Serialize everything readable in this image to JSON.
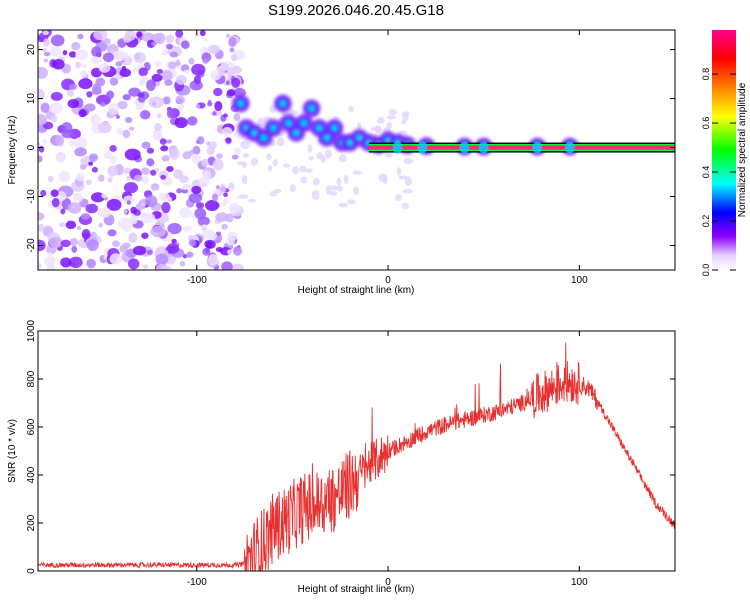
{
  "title": "S199.2026.046.20.45.G18",
  "chart_data": [
    {
      "type": "heatmap",
      "xlabel": "Height of straight line (km)",
      "ylabel": "Frequency (Hz)",
      "xlim": [
        -183,
        150
      ],
      "ylim": [
        -25,
        24
      ],
      "xticks": [
        -100,
        0,
        100
      ],
      "yticks": [
        -20,
        -10,
        0,
        10,
        20
      ],
      "colorbar": {
        "label": "Normalized spectral amplitude",
        "range": [
          0,
          0.98
        ],
        "ticks": [
          0.0,
          0.2,
          0.4,
          0.6,
          0.8
        ],
        "stops": [
          "#ffffff",
          "#e6d2ff",
          "#8c00ff",
          "#0000ff",
          "#00ffff",
          "#00ff00",
          "#ffff00",
          "#ff8000",
          "#ff0000",
          "#ff0090"
        ]
      },
      "noise_region": {
        "x_from": -183,
        "x_to": -77,
        "freq_from": -25,
        "freq_to": 24
      },
      "carrier": {
        "freq": 0,
        "x_from": 0,
        "x_to": 150
      },
      "ridge": [
        {
          "x": -77,
          "f": 9
        },
        {
          "x": -74,
          "f": 4
        },
        {
          "x": -70,
          "f": 3
        },
        {
          "x": -65,
          "f": 2
        },
        {
          "x": -60,
          "f": 4
        },
        {
          "x": -55,
          "f": 9
        },
        {
          "x": -52,
          "f": 5
        },
        {
          "x": -48,
          "f": 3
        },
        {
          "x": -44,
          "f": 5
        },
        {
          "x": -40,
          "f": 8
        },
        {
          "x": -36,
          "f": 4
        },
        {
          "x": -32,
          "f": 2
        },
        {
          "x": -28,
          "f": 4
        },
        {
          "x": -24,
          "f": 1
        },
        {
          "x": -20,
          "f": 1
        },
        {
          "x": -15,
          "f": 2
        },
        {
          "x": -10,
          "f": 1
        },
        {
          "x": -5,
          "f": 0.5
        },
        {
          "x": 0,
          "f": 1.5
        },
        {
          "x": 5,
          "f": 1
        },
        {
          "x": 10,
          "f": 0.5
        },
        {
          "x": 20,
          "f": 0.3
        },
        {
          "x": 40,
          "f": 0.2
        },
        {
          "x": 50,
          "f": 0.2
        },
        {
          "x": 78,
          "f": 0.2
        },
        {
          "x": 95,
          "f": 0.2
        }
      ]
    },
    {
      "type": "line",
      "xlabel": "Height of straight line (km)",
      "ylabel": "SNR (10 * v/v)",
      "xlim": [
        -183,
        150
      ],
      "ylim": [
        0,
        1000
      ],
      "xticks": [
        -100,
        0,
        100
      ],
      "yticks": [
        0,
        200,
        400,
        600,
        800,
        1000
      ],
      "series": [
        {
          "name": "SNR",
          "color": "#e83030",
          "x": [
            -183,
            -170,
            -150,
            -130,
            -110,
            -90,
            -80,
            -75,
            -70,
            -65,
            -60,
            -55,
            -50,
            -45,
            -40,
            -35,
            -30,
            -25,
            -20,
            -15,
            -10,
            -5,
            0,
            10,
            20,
            30,
            40,
            50,
            60,
            70,
            80,
            85,
            90,
            95,
            100,
            105,
            110,
            120,
            130,
            140,
            150
          ],
          "y": [
            25,
            25,
            25,
            25,
            25,
            25,
            25,
            30,
            70,
            120,
            180,
            200,
            230,
            260,
            270,
            280,
            300,
            320,
            360,
            400,
            440,
            470,
            500,
            540,
            580,
            610,
            630,
            650,
            670,
            700,
            740,
            760,
            780,
            790,
            780,
            760,
            700,
            560,
            420,
            280,
            190
          ]
        }
      ]
    }
  ]
}
